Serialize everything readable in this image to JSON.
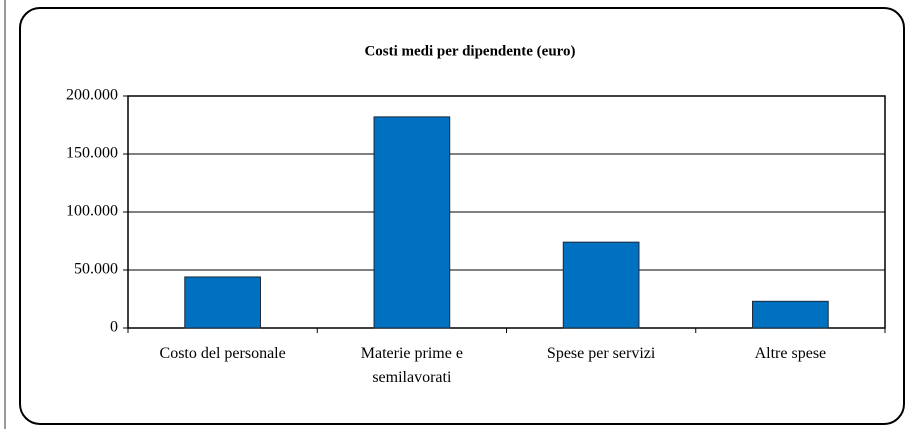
{
  "chart_data": {
    "type": "bar",
    "title": "Costi medi per dipendente (euro)",
    "categories": [
      "Costo del personale",
      "Materie prime e semilavorati",
      "Spese per servizi",
      "Altre spese"
    ],
    "values": [
      44000,
      182000,
      74000,
      23000
    ],
    "color": "#0070c0",
    "ylim": [
      0,
      200000
    ],
    "yticks": [
      0,
      {
        "value": 50000,
        "label": "50.000"
      },
      {
        "value": 100000,
        "label": "100.000"
      },
      {
        "value": 150000,
        "label": "150.000"
      },
      {
        "value": 200000,
        "label": "200.000"
      }
    ],
    "grid": true
  }
}
